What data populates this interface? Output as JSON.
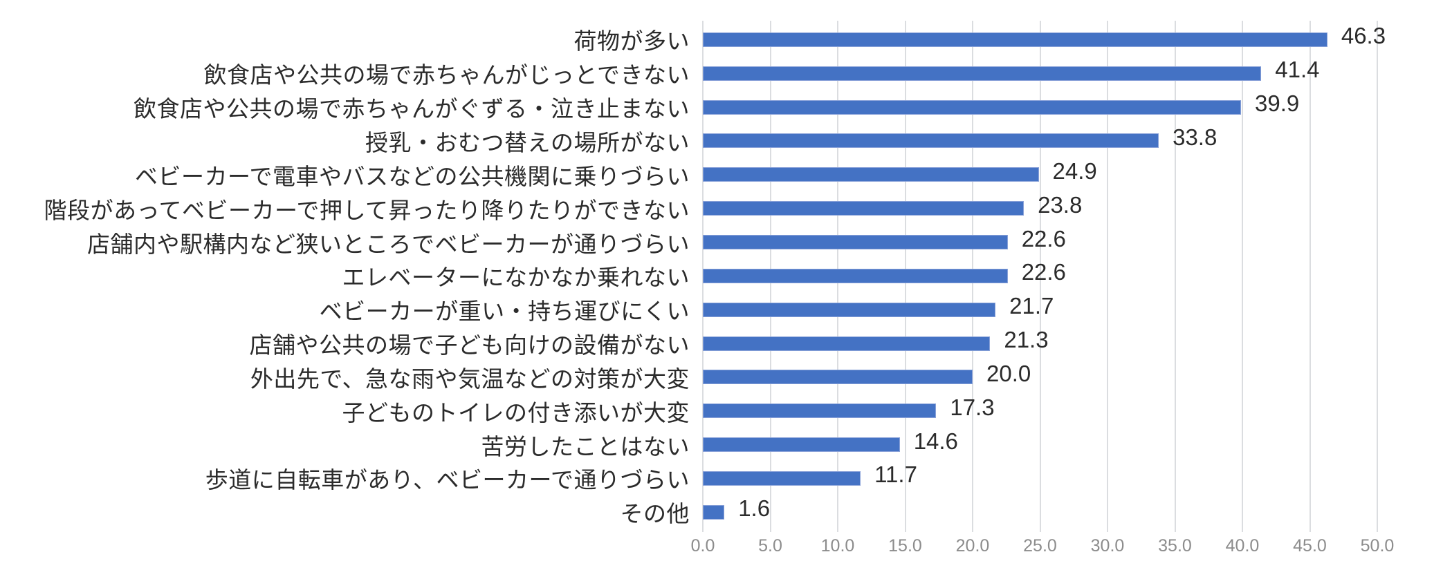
{
  "chart_data": {
    "type": "bar",
    "orientation": "horizontal",
    "title": "",
    "categories": [
      "荷物が多い",
      "飲食店や公共の場で赤ちゃんがじっとできない",
      "飲食店や公共の場で赤ちゃんがぐずる・泣き止まない",
      "授乳・おむつ替えの場所がない",
      "ベビーカーで電車やバスなどの公共機関に乗りづらい",
      "階段があってベビーカーで押して昇ったり降りたりができない",
      "店舗内や駅構内など狭いところでベビーカーが通りづらい",
      "エレベーターになかなか乗れない",
      "ベビーカーが重い・持ち運びにくい",
      "店舗や公共の場で子ども向けの設備がない",
      "外出先で、急な雨や気温などの対策が大変",
      "子どものトイレの付き添いが大変",
      "苦労したことはない",
      "歩道に自転車があり、ベビーカーで通りづらい",
      "その他"
    ],
    "values": [
      46.3,
      41.4,
      39.9,
      33.8,
      24.9,
      23.8,
      22.6,
      22.6,
      21.7,
      21.3,
      20.0,
      17.3,
      14.6,
      11.7,
      1.6
    ],
    "value_labels": [
      "46.3",
      "41.4",
      "39.9",
      "33.8",
      "24.9",
      "23.8",
      "22.6",
      "22.6",
      "21.7",
      "21.3",
      "20.0",
      "17.3",
      "14.6",
      "11.7",
      "1.6"
    ],
    "xlabel": "",
    "ylabel": "",
    "xlim": [
      0.0,
      50.0
    ],
    "x_tick_step": 5.0,
    "x_tick_labels": [
      "0.0",
      "5.0",
      "10.0",
      "15.0",
      "20.0",
      "25.0",
      "30.0",
      "35.0",
      "40.0",
      "45.0",
      "50.0"
    ],
    "grid": "vertical",
    "legend_position": "none",
    "colors": {
      "bar_fill": "#4472C4",
      "bar_border": "#89A1D8",
      "gridline": "#DBDDE0",
      "category_label": "#2B2B2B",
      "value_label": "#2B2B2B",
      "tick_label": "#8C8C8C",
      "background": "#FFFFFF"
    }
  }
}
